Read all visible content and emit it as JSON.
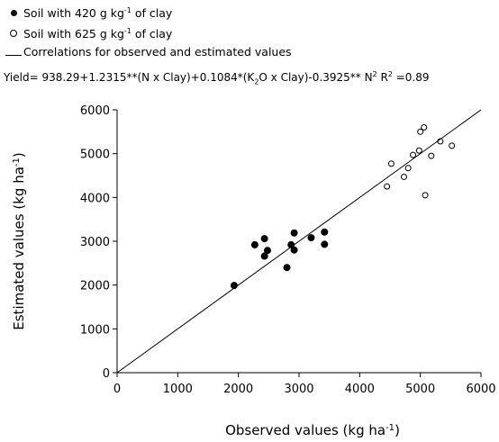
{
  "legend": {
    "filled": {
      "text_pre": "Soil with 420 g kg",
      "sup": "-1",
      "text_post": " of clay"
    },
    "open": {
      "text_pre": "Soil with 625 g kg",
      "sup": "-1",
      "text_post": " of clay"
    },
    "line": "Correlations for observed and estimated values"
  },
  "equation": {
    "part1": "Yield= 938.29+1.2315**(N  x Clay)+0.1084*(K",
    "sub": "2",
    "part2": "O x Clay)-0.3925**  N",
    "sup_n": "2",
    "r_label": " R",
    "sup_r": "2",
    "r_value": " =0.89"
  },
  "chart_data": {
    "type": "scatter",
    "xlabel": "Observed values (kg ha-1)",
    "ylabel": "Estimated values (kg ha-1)",
    "xlim": [
      0,
      6000
    ],
    "ylim": [
      0,
      6000
    ],
    "x_ticks": [
      "0",
      "1000",
      "2000",
      "3000",
      "4000",
      "5000",
      "6000"
    ],
    "y_ticks": [
      "0",
      "1000",
      "2000",
      "3000",
      "4000",
      "5000",
      "6000"
    ],
    "grid": false,
    "legend_position": "top-left",
    "series": [
      {
        "name": "Soil with 420 g kg-1 of clay",
        "marker": "filled",
        "points": [
          [
            1930,
            1990
          ],
          [
            2270,
            2920
          ],
          [
            2430,
            3060
          ],
          [
            2430,
            2660
          ],
          [
            2480,
            2790
          ],
          [
            2800,
            2400
          ],
          [
            2870,
            2920
          ],
          [
            2920,
            2800
          ],
          [
            2920,
            3190
          ],
          [
            3200,
            3080
          ],
          [
            3420,
            3210
          ],
          [
            3420,
            2930
          ]
        ]
      },
      {
        "name": "Soil with 625 g kg-1 of clay",
        "marker": "open",
        "points": [
          [
            4450,
            4250
          ],
          [
            4520,
            4770
          ],
          [
            4730,
            4470
          ],
          [
            4800,
            4670
          ],
          [
            4880,
            4970
          ],
          [
            4980,
            5070
          ],
          [
            5000,
            5500
          ],
          [
            5060,
            5600
          ],
          [
            5080,
            4050
          ],
          [
            5180,
            4950
          ],
          [
            5330,
            5280
          ],
          [
            5520,
            5180
          ]
        ]
      },
      {
        "name": "Correlations for observed and estimated values",
        "type": "line",
        "points": [
          [
            0,
            0
          ],
          [
            6000,
            6000
          ]
        ]
      }
    ]
  }
}
